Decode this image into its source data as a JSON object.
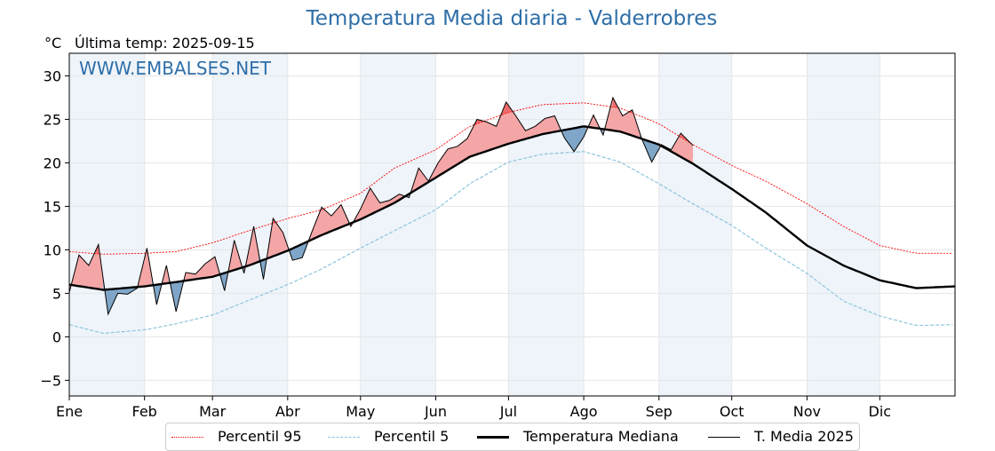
{
  "title": "Temperatura Media diaria - Valderrobres",
  "unit_label": "°C",
  "last_temp_label": "Última temp: 2025-09-15",
  "watermark": "WWW.EMBALSES.NET",
  "colors": {
    "p95": "#ff0000",
    "p5": "#8cc4dc",
    "median": "#000000",
    "current": "#000000",
    "above_fill": "#f4a6a6",
    "above_strong": "#ef6b6b",
    "below_fill": "#7fa6c8",
    "below_strong": "#2a6aa0",
    "band": "#eef4fa",
    "title": "#2e6ea8"
  },
  "legend": [
    {
      "label": "Percentil 95",
      "style": "p95"
    },
    {
      "label": "Percentil 5",
      "style": "p5"
    },
    {
      "label": "Temperatura Mediana",
      "style": "median"
    },
    {
      "label": "T. Media 2025",
      "style": "current"
    }
  ],
  "chart_data": {
    "type": "line",
    "title": "Temperatura Media diaria - Valderrobres",
    "ylabel": "°C",
    "ylim": [
      -6.8,
      32.6
    ],
    "xlim": [
      1,
      366
    ],
    "yticks": [
      -5,
      0,
      5,
      10,
      15,
      20,
      25,
      30
    ],
    "months": [
      {
        "label": "Ene",
        "day": 1
      },
      {
        "label": "Feb",
        "day": 32
      },
      {
        "label": "Mar",
        "day": 60
      },
      {
        "label": "Abr",
        "day": 91
      },
      {
        "label": "May",
        "day": 121
      },
      {
        "label": "Jun",
        "day": 152
      },
      {
        "label": "Jul",
        "day": 182
      },
      {
        "label": "Ago",
        "day": 213
      },
      {
        "label": "Sep",
        "day": 244
      },
      {
        "label": "Oct",
        "day": 274
      },
      {
        "label": "Nov",
        "day": 305
      },
      {
        "label": "Dic",
        "day": 335
      }
    ],
    "series": [
      {
        "name": "Percentil 95",
        "x": [
          1,
          15,
          32,
          45,
          60,
          75,
          91,
          105,
          121,
          135,
          152,
          166,
          182,
          196,
          213,
          228,
          244,
          258,
          274,
          288,
          305,
          320,
          335,
          350,
          366
        ],
        "values": [
          9.8,
          9.5,
          9.6,
          9.8,
          10.8,
          12.2,
          13.6,
          14.6,
          16.5,
          19.4,
          21.5,
          24.2,
          25.8,
          26.7,
          26.9,
          26.3,
          24.5,
          22.1,
          19.7,
          17.9,
          15.3,
          12.7,
          10.5,
          9.6,
          9.6
        ]
      },
      {
        "name": "Percentil 5",
        "x": [
          1,
          15,
          32,
          45,
          60,
          75,
          91,
          105,
          121,
          135,
          152,
          166,
          182,
          196,
          213,
          228,
          244,
          258,
          274,
          288,
          305,
          320,
          335,
          350,
          366
        ],
        "values": [
          1.4,
          0.4,
          0.8,
          1.5,
          2.5,
          4.2,
          6.0,
          7.8,
          10.2,
          12.2,
          14.6,
          17.6,
          20.1,
          21.0,
          21.3,
          20.1,
          17.6,
          15.3,
          12.8,
          10.2,
          7.3,
          4.1,
          2.4,
          1.3,
          1.4
        ]
      },
      {
        "name": "Temperatura Mediana",
        "x": [
          1,
          15,
          32,
          45,
          60,
          75,
          91,
          105,
          121,
          135,
          152,
          166,
          182,
          196,
          213,
          228,
          244,
          258,
          274,
          288,
          305,
          320,
          335,
          350,
          366
        ],
        "values": [
          6.0,
          5.4,
          5.8,
          6.3,
          6.9,
          8.2,
          9.9,
          11.7,
          13.5,
          15.4,
          18.3,
          20.7,
          22.2,
          23.3,
          24.2,
          23.6,
          22.1,
          19.9,
          17.0,
          14.3,
          10.5,
          8.2,
          6.5,
          5.6,
          5.8
        ]
      },
      {
        "name": "T. Media 2025",
        "x": [
          1,
          5,
          9,
          13,
          17,
          21,
          25,
          29,
          33,
          37,
          41,
          45,
          49,
          53,
          57,
          61,
          65,
          69,
          73,
          77,
          81,
          85,
          89,
          93,
          97,
          101,
          105,
          109,
          113,
          117,
          121,
          125,
          129,
          133,
          137,
          141,
          145,
          149,
          153,
          157,
          161,
          165,
          169,
          173,
          177,
          181,
          185,
          189,
          193,
          197,
          201,
          205,
          209,
          213,
          217,
          221,
          225,
          229,
          233,
          237,
          241,
          245,
          249,
          253,
          258
        ],
        "values": [
          5.1,
          9.4,
          8.2,
          10.6,
          2.6,
          5.0,
          4.9,
          5.6,
          10.2,
          3.7,
          8.2,
          2.9,
          7.4,
          7.2,
          8.4,
          9.2,
          5.3,
          11.1,
          7.3,
          12.7,
          6.6,
          13.6,
          12.0,
          8.8,
          9.1,
          12.1,
          14.9,
          13.9,
          15.2,
          12.7,
          14.7,
          17.1,
          15.4,
          15.7,
          16.4,
          16.0,
          19.4,
          17.9,
          20.0,
          21.6,
          21.9,
          22.8,
          25.0,
          24.7,
          24.2,
          27.0,
          25.4,
          23.7,
          24.2,
          25.1,
          25.4,
          22.9,
          21.3,
          23.0,
          25.5,
          23.2,
          27.5,
          25.4,
          26.1,
          22.7,
          20.1,
          22.1,
          21.5,
          23.4,
          22.0
        ]
      }
    ]
  }
}
